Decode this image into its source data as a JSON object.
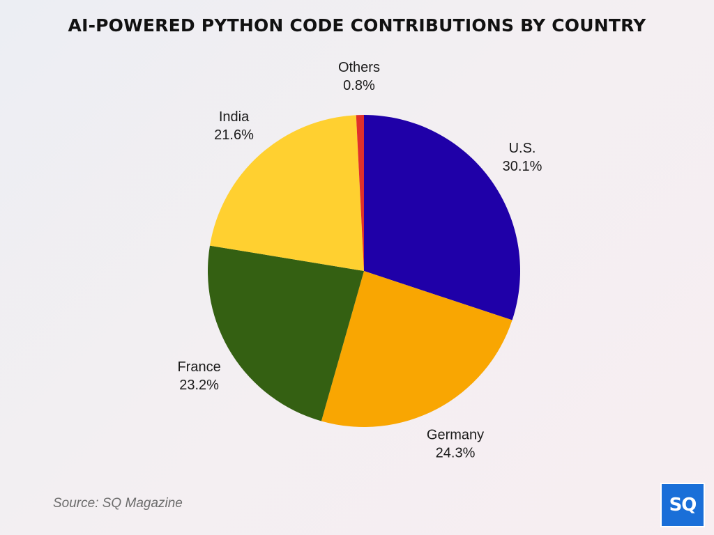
{
  "page": {
    "source": "Source: SQ Magazine",
    "logo_text": "SQ"
  },
  "chart_data": {
    "type": "pie",
    "title": "AI-POWERED PYTHON CODE CONTRIBUTIONS BY COUNTRY",
    "slices": [
      {
        "label": "U.S.",
        "value": 30.1,
        "display": "30.1%",
        "color": "#1f00a8"
      },
      {
        "label": "Germany",
        "value": 24.3,
        "display": "24.3%",
        "color": "#f9a602"
      },
      {
        "label": "France",
        "value": 23.2,
        "display": "23.2%",
        "color": "#346012"
      },
      {
        "label": "India",
        "value": 21.6,
        "display": "21.6%",
        "color": "#ffd030"
      },
      {
        "label": "Others",
        "value": 0.8,
        "display": "0.8%",
        "color": "#e0302a"
      }
    ],
    "start_angle_deg": 0,
    "direction": "clockwise",
    "labels": "outside"
  }
}
